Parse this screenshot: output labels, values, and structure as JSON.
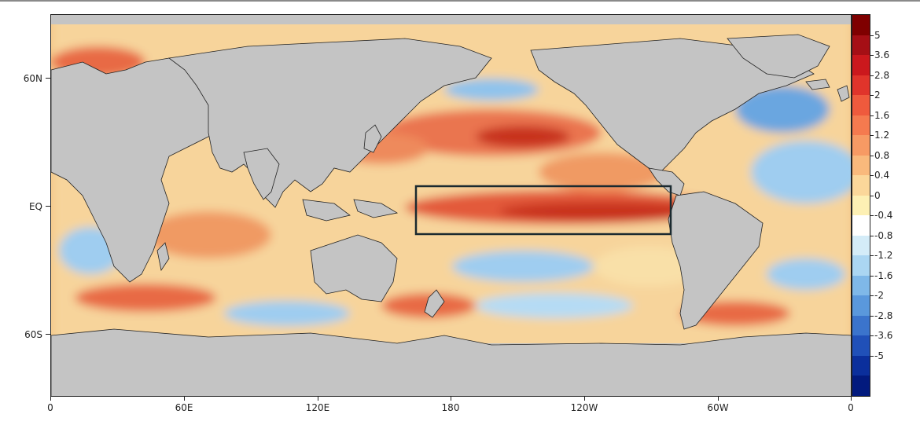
{
  "map": {
    "y_axis_labels": [
      "60N",
      "EQ",
      "60S"
    ],
    "x_axis_labels": [
      "0",
      "60E",
      "120E",
      "180",
      "120W",
      "60W",
      "0"
    ],
    "highlight_region": "Niño 3.4-style equatorial Pacific box"
  },
  "colorbar": {
    "labels": [
      "5",
      "3.6",
      "2.8",
      "2",
      "1.6",
      "1.2",
      "0.8",
      "0.4",
      "0",
      "-0.4",
      "-0.8",
      "-1.2",
      "-1.6",
      "-2",
      "-2.8",
      "-3.6",
      "-5"
    ],
    "colors": [
      "#7f0000",
      "#a50f15",
      "#cb181d",
      "#e0342b",
      "#ef5a3d",
      "#f57a4f",
      "#f79a64",
      "#f9b97c",
      "#fbd79a",
      "#fdf0b4",
      "#ffffff",
      "#d4ecf8",
      "#abd6f2",
      "#7fb8e8",
      "#5a98dc",
      "#3b74cc",
      "#2050b8",
      "#0b2f9c",
      "#021a7e"
    ]
  },
  "colors": {
    "land": "#c4c4c4",
    "ice": "#ffffff",
    "ocean_base": "#f3c27e",
    "warm": "#e3502f",
    "cool": "#6aa6e0",
    "box": "#1b2a30"
  }
}
